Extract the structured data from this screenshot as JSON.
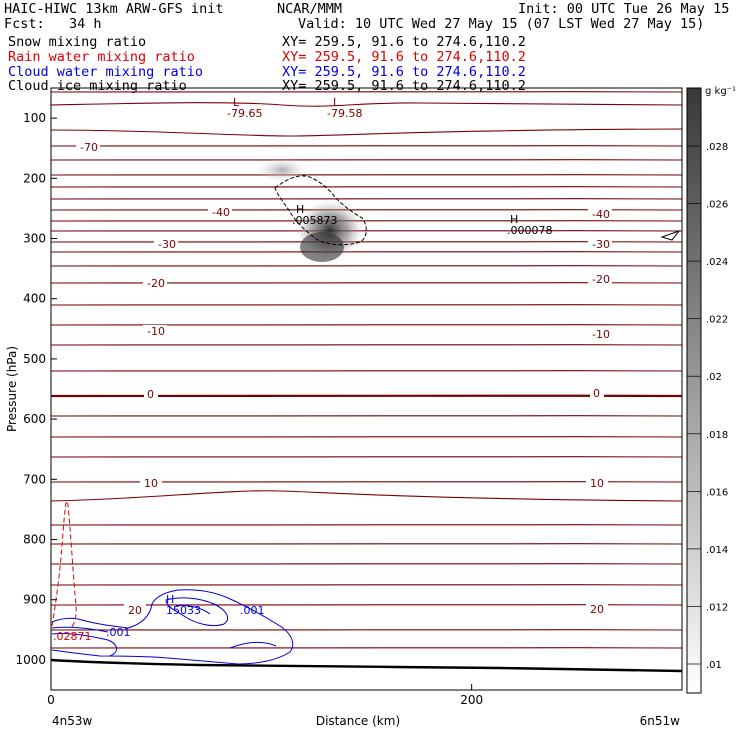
{
  "header": {
    "left1": "HAIC-HIWC 13km ARW-GFS init",
    "center1": "NCAR/MMM",
    "right1": "Init: 00 UTC Tue 26 May 15",
    "left2": "Fcst:   34 h",
    "center2": "Valid: 10 UTC Wed 27 May 15 (07 LST Wed 27 May 15)",
    "fields": [
      {
        "name": "Snow mixing ratio",
        "xy": "XY= 259.5, 91.6 to 274.6,110.2",
        "color": "#000000"
      },
      {
        "name": "Rain water mixing ratio",
        "xy": "XY= 259.5, 91.6 to 274.6,110.2",
        "color": "#e00000"
      },
      {
        "name": "Cloud water mixing ratio",
        "xy": "XY= 259.5, 91.6 to 274.6,110.2",
        "color": "#0000e0"
      },
      {
        "name": "Cloud ice mixing ratio",
        "xy": "XY= 259.5, 91.6 to 274.6,110.2",
        "color": "#000000"
      }
    ]
  },
  "chart_data": {
    "type": "contour cross-section",
    "xlabel": "Distance (km)",
    "ylabel": "Pressure (hPa)",
    "x_ticks": [
      0,
      200
    ],
    "x_range_km": [
      0,
      300
    ],
    "y_ticks": [
      100,
      200,
      300,
      400,
      500,
      600,
      700,
      800,
      900,
      1000
    ],
    "y_range_hPa": [
      50,
      1050
    ],
    "x_end_labels": {
      "left": "4n53w",
      "right": "6n51w"
    },
    "colorbar": {
      "unit": "g kg⁻¹",
      "ticks": [
        ".01",
        ".012",
        ".014",
        ".016",
        ".018",
        ".02",
        ".022",
        ".024",
        ".026",
        ".028"
      ]
    },
    "temperature_contour_labels": [
      "-70",
      "-40",
      "-30",
      "-20",
      "-10",
      "0",
      "10",
      "20"
    ],
    "extrema": [
      {
        "kind": "L",
        "value": "-79.65"
      },
      {
        "kind": "L",
        "value": "-79.58"
      },
      {
        "kind": "H",
        "value": ".005873"
      },
      {
        "kind": "H",
        "value": ".000078"
      },
      {
        "kind": "H",
        "value": "15033"
      },
      {
        "kind": "value",
        "value": ".02871"
      },
      {
        "kind": "value",
        "value": ".001"
      },
      {
        "kind": "value",
        "value": ".001"
      }
    ],
    "temperature_line_color": "#7a0000",
    "snow_contour_color": "#000000",
    "rain_contour_color": "#e00000",
    "cloud_water_contour_color": "#0000e0"
  }
}
